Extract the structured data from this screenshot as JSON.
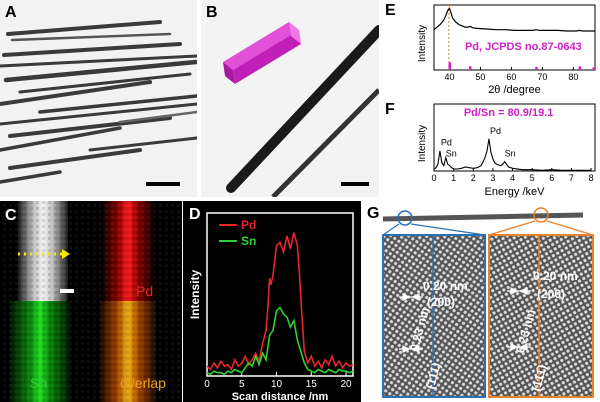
{
  "panels": {
    "a": {
      "label": "A"
    },
    "b": {
      "label": "B"
    },
    "c": {
      "label": "C",
      "channel_pd": "Pd",
      "channel_sn": "Sn",
      "channel_overlap": "overlap"
    },
    "d": {
      "label": "D"
    },
    "e": {
      "label": "E"
    },
    "f": {
      "label": "F"
    },
    "g": {
      "label": "G",
      "left_d1": "0.20 nm",
      "left_hkl1": "(200)",
      "left_d2": "0.23 nm",
      "left_hkl2": "(111)",
      "right_d1": "0.20 nm",
      "right_hkl1": "(200)",
      "right_d2": "0.23 nm",
      "right_hkl2": "(111)"
    }
  },
  "colors": {
    "pd_red": "#e8262a",
    "sn_green": "#2fd02f",
    "magenta": "#d020c8",
    "orange": "#e8822a",
    "blue": "#2a6fb8",
    "dotted_yellow": "#f5e600"
  },
  "chart_data": [
    {
      "id": "D",
      "type": "line",
      "xlabel": "Scan distance /nm",
      "ylabel": "Intensity",
      "xlim": [
        0,
        21
      ],
      "xticks": [
        0,
        5,
        10,
        15,
        20
      ],
      "ylim": [
        0,
        100
      ],
      "series": [
        {
          "name": "Pd",
          "color": "#e8262a",
          "x": [
            0,
            0.5,
            1,
            1.5,
            2,
            2.5,
            3,
            3.5,
            4,
            4.5,
            5,
            5.5,
            6,
            6.5,
            7,
            7.5,
            8,
            8.5,
            8.8,
            9,
            9.2,
            9.5,
            10,
            10.5,
            11,
            11.5,
            12,
            12.5,
            13,
            13.3,
            13.6,
            14,
            14.5,
            15,
            15.5,
            16,
            16.5,
            17,
            17.5,
            18,
            18.5,
            19,
            19.5,
            20,
            20.5,
            21
          ],
          "y": [
            6,
            4,
            8,
            5,
            9,
            6,
            7,
            4,
            10,
            6,
            8,
            12,
            7,
            10,
            14,
            9,
            20,
            28,
            45,
            60,
            56,
            62,
            80,
            82,
            76,
            86,
            78,
            88,
            80,
            62,
            40,
            15,
            8,
            12,
            6,
            9,
            5,
            10,
            7,
            12,
            6,
            9,
            5,
            8,
            6,
            7
          ]
        },
        {
          "name": "Sn",
          "color": "#2fd02f",
          "x": [
            0,
            0.5,
            1,
            1.5,
            2,
            2.5,
            3,
            3.5,
            4,
            4.5,
            5,
            5.5,
            6,
            6.5,
            7,
            7.5,
            8,
            8.5,
            9,
            9.5,
            10,
            10.5,
            11,
            11.5,
            12,
            12.5,
            13,
            13.5,
            14,
            14.5,
            15,
            15.5,
            16,
            16.5,
            17,
            17.5,
            18,
            18.5,
            19,
            19.5,
            20,
            20.5,
            21
          ],
          "y": [
            2,
            1,
            3,
            2,
            2,
            1,
            3,
            2,
            4,
            3,
            2,
            5,
            8,
            6,
            12,
            7,
            14,
            10,
            25,
            28,
            40,
            42,
            38,
            36,
            30,
            34,
            22,
            15,
            8,
            4,
            3,
            2,
            4,
            3,
            2,
            4,
            3,
            2,
            4,
            3,
            3,
            2,
            3
          ]
        }
      ]
    },
    {
      "id": "E",
      "type": "line",
      "xlabel": "2θ /degree",
      "ylabel": "Intensity",
      "xlim": [
        35,
        87
      ],
      "xticks": [
        40,
        50,
        60,
        70,
        80
      ],
      "ylim": [
        0,
        100
      ],
      "reference_label": "Pd, JCPDS no.87-0643",
      "reference_peaks": [
        {
          "x": 40.1,
          "h": 55
        },
        {
          "x": 46.7,
          "h": 26
        },
        {
          "x": 68.1,
          "h": 22
        },
        {
          "x": 82.1,
          "h": 26
        },
        {
          "x": 86.6,
          "h": 18
        }
      ],
      "dashed_line_x": 39.8,
      "series": [
        {
          "name": "XRD",
          "color": "#000000",
          "x": [
            35,
            36,
            37,
            38,
            38.5,
            39,
            39.5,
            40,
            40.5,
            41,
            42,
            43,
            44,
            45,
            46,
            46.7,
            47.5,
            49,
            52,
            55,
            58,
            61,
            64,
            67,
            68.1,
            69,
            72,
            75,
            78,
            81,
            82.1,
            83,
            85,
            87
          ],
          "y": [
            62,
            66,
            70,
            76,
            80,
            86,
            92,
            95,
            88,
            80,
            74,
            70,
            68,
            66,
            66,
            67,
            65,
            64,
            63,
            62,
            62,
            61,
            61,
            61,
            62,
            61,
            61,
            61,
            60,
            60,
            61,
            60,
            60,
            60
          ]
        }
      ]
    },
    {
      "id": "F",
      "type": "line",
      "xlabel": "Energy /keV",
      "ylabel": "Intensity",
      "xlim": [
        0,
        8.2
      ],
      "xticks": [
        0,
        1,
        2,
        3,
        4,
        5,
        6,
        7,
        8
      ],
      "ylim": [
        0,
        100
      ],
      "annotation": "Pd/Sn = 80.9/19.1",
      "peak_labels": [
        {
          "text": "Pd",
          "x": 0.35,
          "y": 38
        },
        {
          "text": "Sn",
          "x": 0.6,
          "y": 22
        },
        {
          "text": "Pd",
          "x": 2.85,
          "y": 55
        },
        {
          "text": "Sn",
          "x": 3.6,
          "y": 22
        }
      ],
      "series": [
        {
          "name": "EDS",
          "color": "#000000",
          "x": [
            0,
            0.1,
            0.2,
            0.3,
            0.4,
            0.5,
            0.6,
            0.7,
            0.8,
            0.9,
            1,
            1.2,
            1.4,
            1.6,
            1.8,
            2,
            2.2,
            2.4,
            2.5,
            2.6,
            2.7,
            2.8,
            2.9,
            3,
            3.1,
            3.2,
            3.3,
            3.4,
            3.5,
            3.6,
            3.7,
            3.8,
            4,
            4.5,
            5,
            5.5,
            6,
            6.5,
            7,
            7.5,
            8
          ],
          "y": [
            3,
            5,
            10,
            30,
            12,
            8,
            20,
            10,
            8,
            5,
            3,
            3,
            4,
            6,
            5,
            4,
            5,
            8,
            14,
            20,
            30,
            48,
            28,
            18,
            12,
            10,
            9,
            8,
            10,
            14,
            10,
            6,
            4,
            2,
            2,
            1,
            2,
            1,
            1,
            1,
            1
          ]
        }
      ]
    }
  ]
}
